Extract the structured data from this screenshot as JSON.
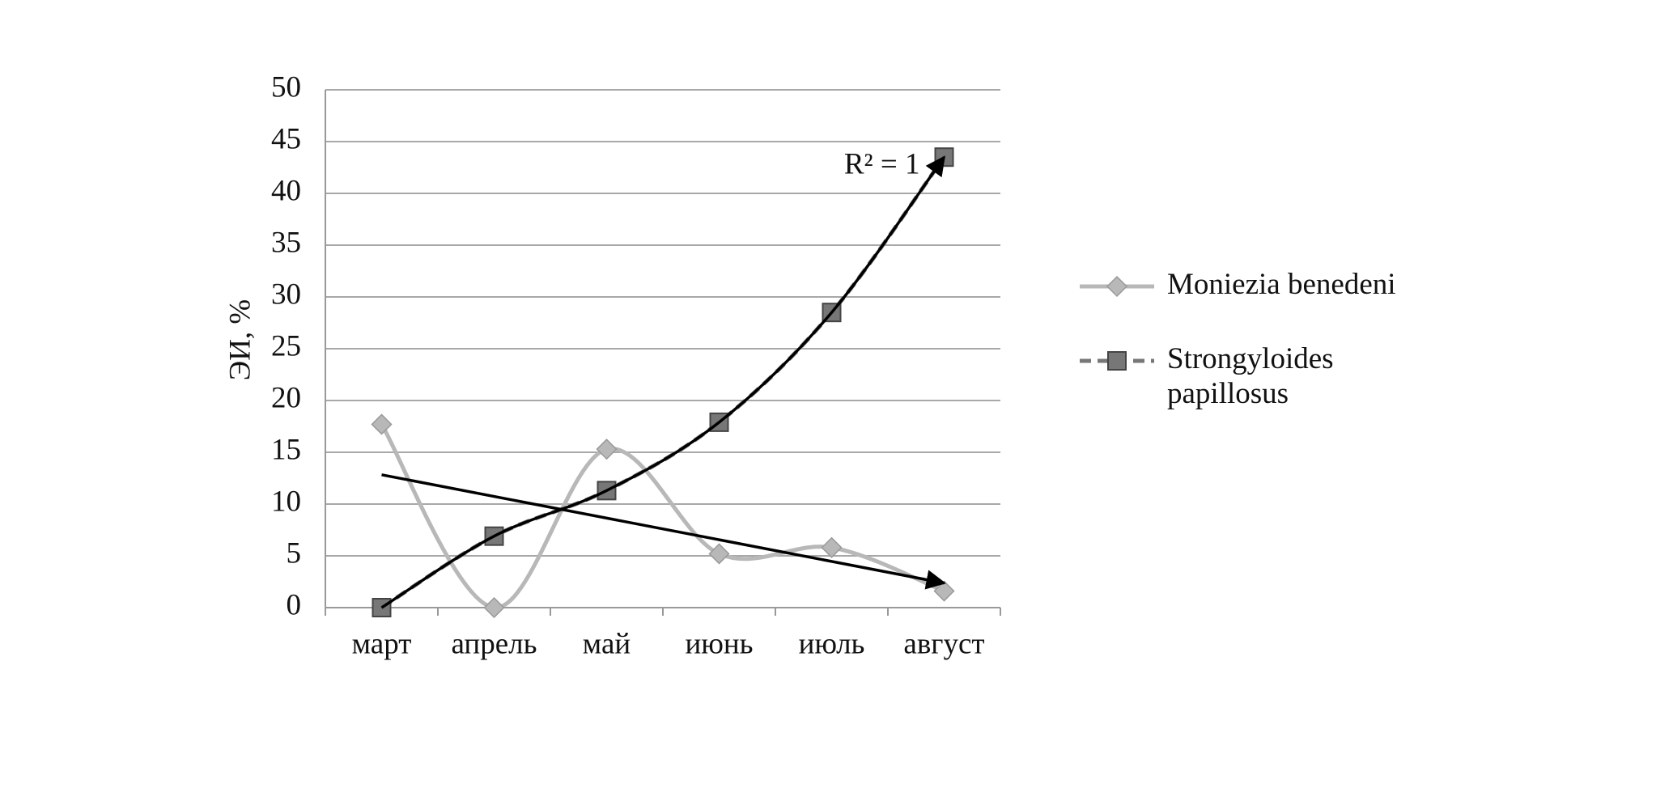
{
  "chart_data": {
    "type": "line",
    "y_label": "ЭИ, %",
    "categories": [
      "март",
      "апрель",
      "май",
      "июнь",
      "июль",
      "август"
    ],
    "series": [
      {
        "name": "Moniezia benedeni",
        "color": "#b8b8b8",
        "marker": "diamond",
        "dashed": false,
        "values": [
          17.7,
          0,
          15.3,
          5.2,
          5.8,
          1.6
        ]
      },
      {
        "name": "Strongyloides papillosus",
        "color": "#777777",
        "marker": "square",
        "dashed": true,
        "values": [
          0,
          6.9,
          11.3,
          17.9,
          28.5,
          43.5
        ]
      }
    ],
    "annotation": "R² = 1",
    "ylim": [
      0,
      50
    ],
    "yticks": [
      0,
      5,
      10,
      15,
      20,
      25,
      30,
      35,
      40,
      45,
      50
    ],
    "grid": true,
    "legend": "right"
  }
}
